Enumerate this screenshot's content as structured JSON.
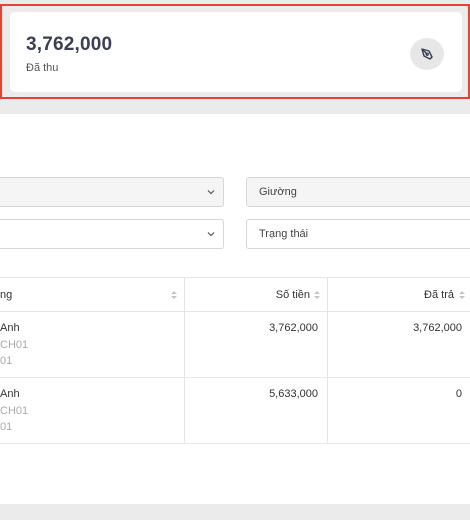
{
  "summary": {
    "value": "3,762,000",
    "label": "Đã thu",
    "icon": "pen-tool-icon"
  },
  "filters": {
    "bed_placeholder": "Giường",
    "status_placeholder": "Trạng thái"
  },
  "table": {
    "columns": {
      "name_partial": "ng",
      "amount": "Số tiền",
      "paid": "Đã trả"
    },
    "rows": [
      {
        "name": "Anh",
        "sub1": "CH01",
        "sub2": "01",
        "amount": "3,762,000",
        "paid": "3,762,000"
      },
      {
        "name": "Anh",
        "sub1": "CH01",
        "sub2": "01",
        "amount": "5,633,000",
        "paid": "0"
      }
    ]
  },
  "colors": {
    "highlight_border": "#e8432e",
    "value_text": "#3b3f56",
    "muted_text": "#a9a9a9"
  }
}
